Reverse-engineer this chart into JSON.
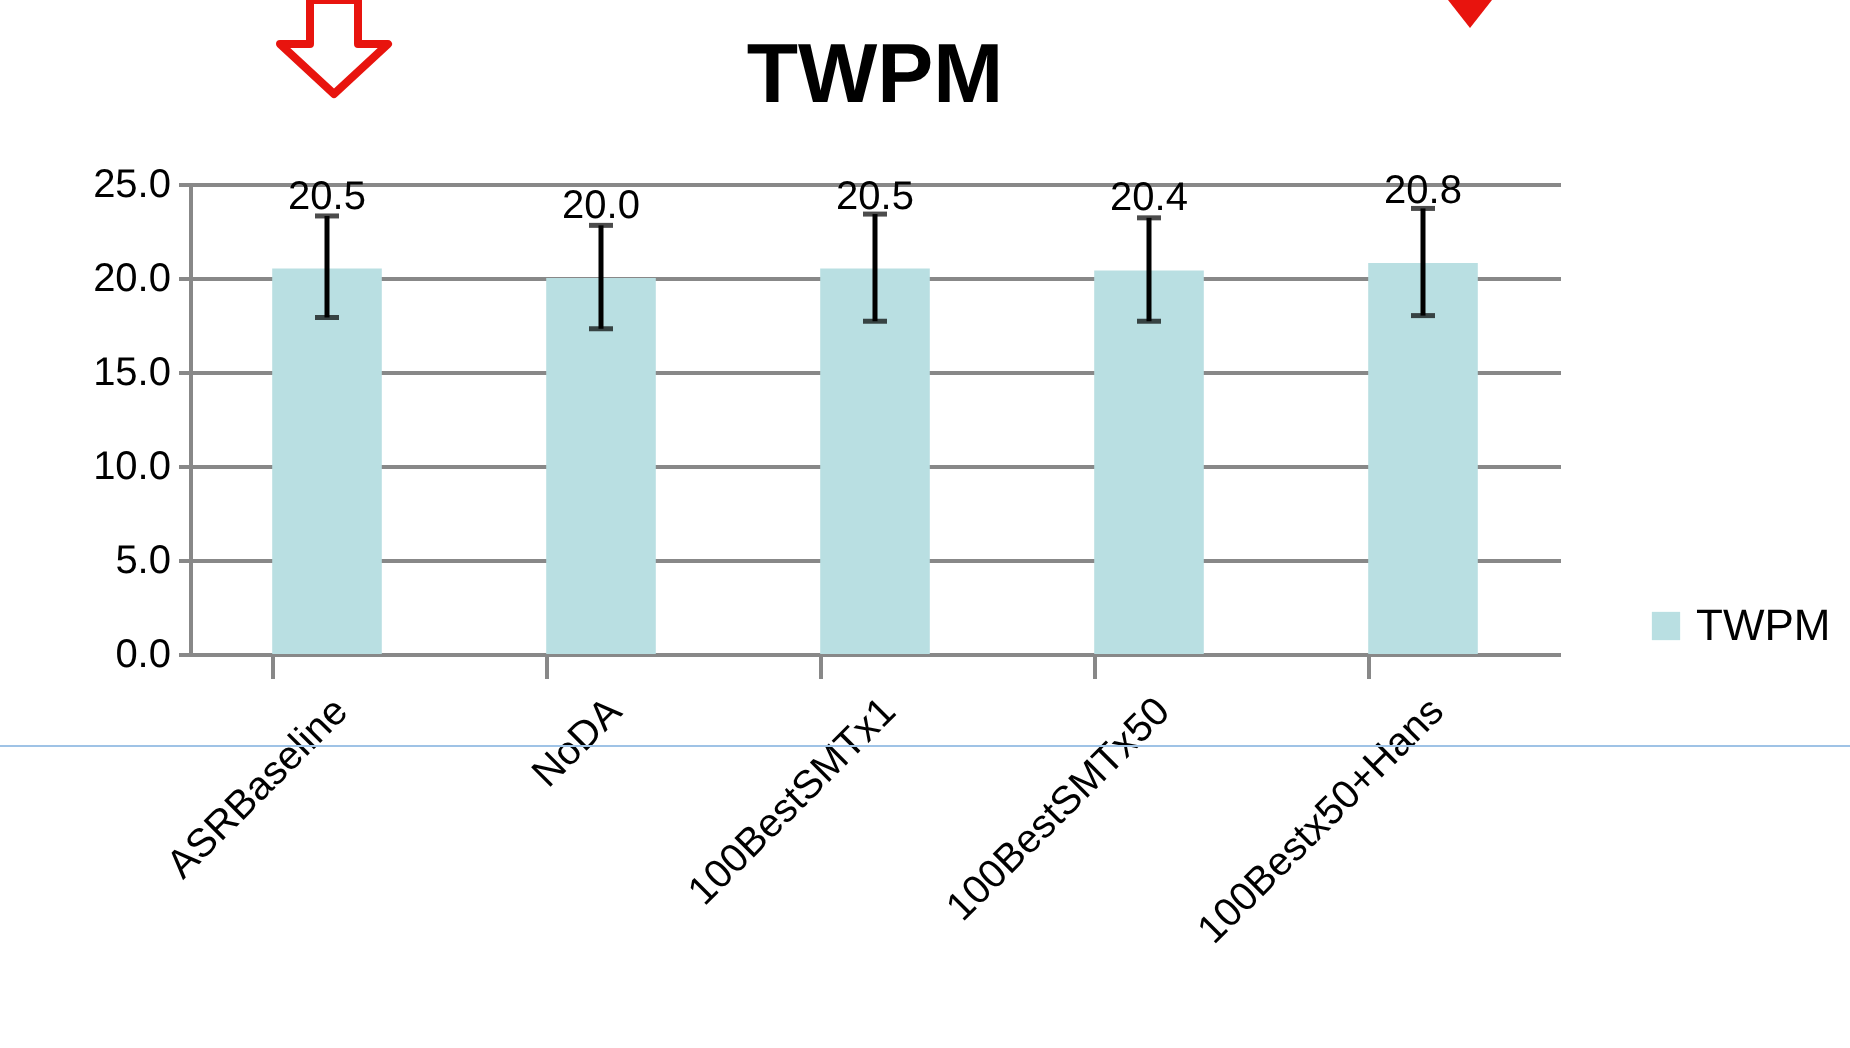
{
  "chart_data": {
    "type": "bar",
    "title": "TWPM",
    "categories": [
      "ASRBaseline",
      "NoDA",
      "100BestSMTx1",
      "100BestSMTx50",
      "100Bestx50+Hans"
    ],
    "series": [
      {
        "name": "TWPM",
        "color": "#b9dfe2",
        "values": [
          20.5,
          20.0,
          20.5,
          20.4,
          20.8
        ],
        "errors": [
          [
            17.9,
            23.3
          ],
          [
            17.3,
            22.8
          ],
          [
            17.7,
            23.4
          ],
          [
            17.7,
            23.2
          ],
          [
            18.0,
            23.7
          ]
        ],
        "value_labels": [
          "20.5",
          "20.0",
          "20.5",
          "20.4",
          "20.8"
        ]
      }
    ],
    "ylim": [
      0,
      25
    ],
    "yticks": [
      {
        "value": 0,
        "label": "0.0"
      },
      {
        "value": 5,
        "label": "5.0"
      },
      {
        "value": 10,
        "label": "10.0"
      },
      {
        "value": 15,
        "label": "15.0"
      },
      {
        "value": 20,
        "label": "20.0"
      },
      {
        "value": 25,
        "label": "25.0"
      }
    ],
    "grid": "y",
    "legend": "right"
  }
}
